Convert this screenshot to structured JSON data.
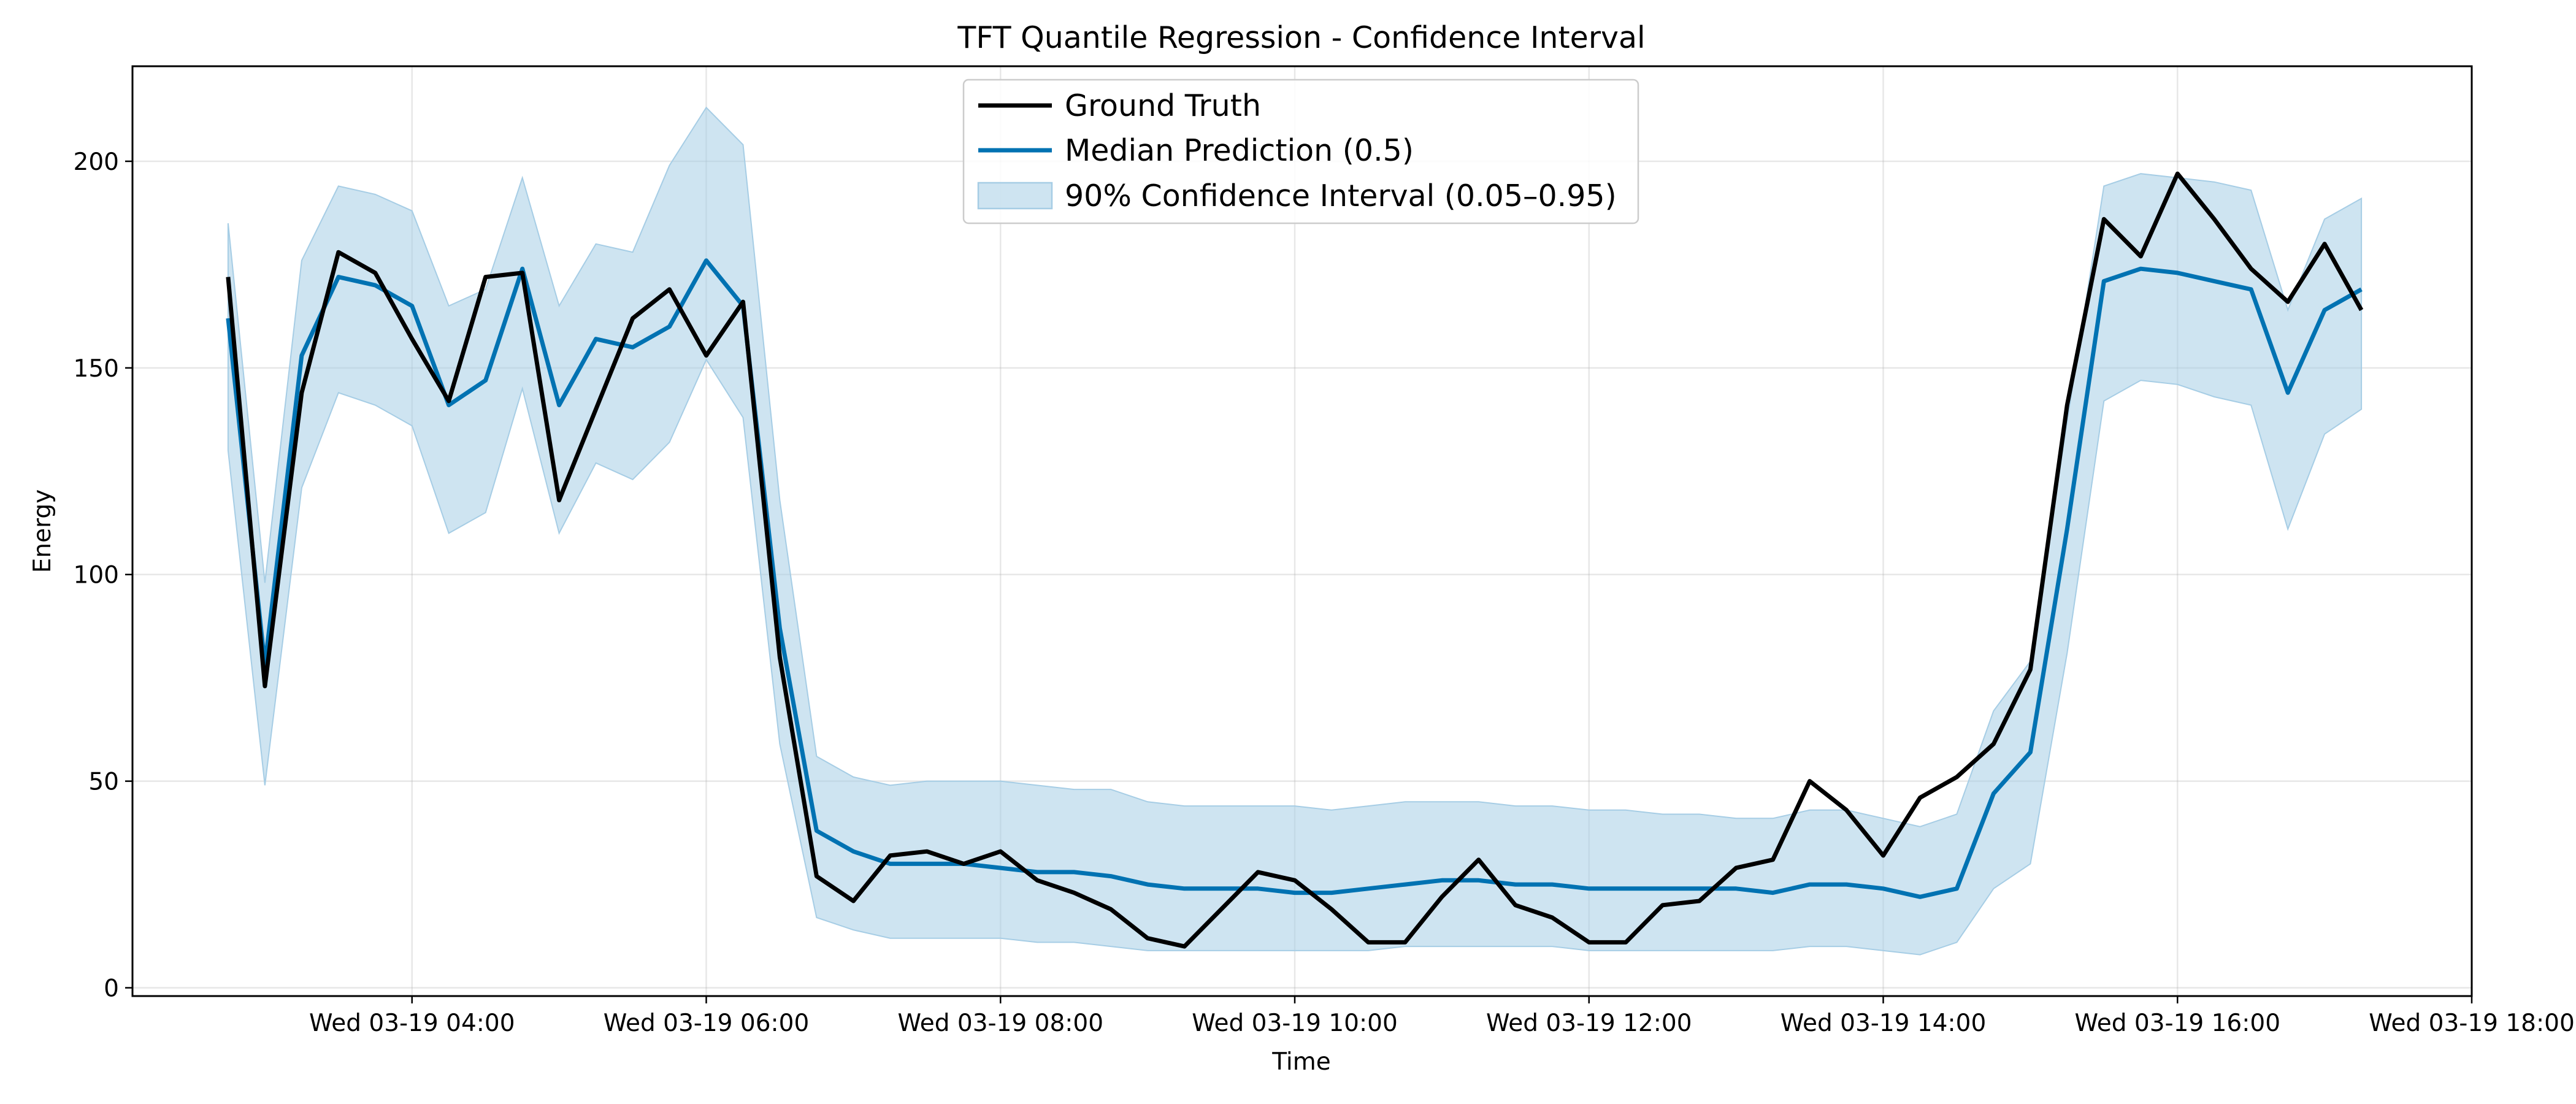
{
  "chart_data": {
    "type": "line",
    "title": "TFT Quantile Regression - Confidence Interval",
    "xlabel": "Time",
    "ylabel": "Energy",
    "x_start_hour": 2.75,
    "x_step_hours": 0.25,
    "xlim_hours": [
      2.1,
      18.0
    ],
    "ylim": [
      -2,
      223
    ],
    "x_ticks": [
      {
        "hour": 4,
        "label": "Wed 03-19 04:00"
      },
      {
        "hour": 6,
        "label": "Wed 03-19 06:00"
      },
      {
        "hour": 8,
        "label": "Wed 03-19 08:00"
      },
      {
        "hour": 10,
        "label": "Wed 03-19 10:00"
      },
      {
        "hour": 12,
        "label": "Wed 03-19 12:00"
      },
      {
        "hour": 14,
        "label": "Wed 03-19 14:00"
      },
      {
        "hour": 16,
        "label": "Wed 03-19 16:00"
      },
      {
        "hour": 18,
        "label": "Wed 03-19 18:00"
      }
    ],
    "y_ticks": [
      0,
      50,
      100,
      150,
      200
    ],
    "grid": true,
    "legend_position": "top-center",
    "series": [
      {
        "name": "Ground Truth",
        "color": "#000000",
        "values": [
          172,
          73,
          144,
          178,
          173,
          157,
          142,
          172,
          173,
          118,
          140,
          162,
          169,
          153,
          166,
          80,
          27,
          21,
          32,
          33,
          30,
          33,
          26,
          23,
          19,
          12,
          10,
          19,
          28,
          26,
          19,
          11,
          11,
          22,
          31,
          20,
          17,
          11,
          11,
          20,
          21,
          29,
          31,
          50,
          43,
          32,
          46,
          51,
          59,
          77,
          141,
          186,
          177,
          197,
          186,
          174,
          166,
          180,
          164
        ]
      },
      {
        "name": "Median Prediction (0.5)",
        "color": "#0072b2",
        "values": [
          162,
          78,
          153,
          172,
          170,
          165,
          141,
          147,
          174,
          141,
          157,
          155,
          160,
          176,
          165,
          87,
          38,
          33,
          30,
          30,
          30,
          29,
          28,
          28,
          27,
          25,
          24,
          24,
          24,
          23,
          23,
          24,
          25,
          26,
          26,
          25,
          25,
          24,
          24,
          24,
          24,
          24,
          23,
          25,
          25,
          24,
          22,
          24,
          47,
          57,
          111,
          171,
          174,
          173,
          171,
          169,
          144,
          164,
          169
        ]
      }
    ],
    "band": {
      "name": "90% Confidence Interval (0.05–0.95)",
      "color": "#a6cde5",
      "lower": [
        130,
        49,
        121,
        144,
        141,
        136,
        110,
        115,
        145,
        110,
        127,
        123,
        132,
        152,
        138,
        59,
        17,
        14,
        12,
        12,
        12,
        12,
        11,
        11,
        10,
        9,
        9,
        9,
        9,
        9,
        9,
        9,
        10,
        10,
        10,
        10,
        10,
        9,
        9,
        9,
        9,
        9,
        9,
        10,
        10,
        9,
        8,
        11,
        24,
        30,
        81,
        142,
        147,
        146,
        143,
        141,
        111,
        134,
        140
      ],
      "upper": [
        185,
        98,
        176,
        194,
        192,
        188,
        165,
        169,
        196,
        165,
        180,
        178,
        199,
        213,
        204,
        118,
        56,
        51,
        49,
        50,
        50,
        50,
        49,
        48,
        48,
        45,
        44,
        44,
        44,
        44,
        43,
        44,
        45,
        45,
        45,
        44,
        44,
        43,
        43,
        42,
        42,
        41,
        41,
        43,
        43,
        41,
        39,
        42,
        67,
        79,
        137,
        194,
        197,
        196,
        195,
        193,
        164,
        186,
        191
      ]
    }
  }
}
